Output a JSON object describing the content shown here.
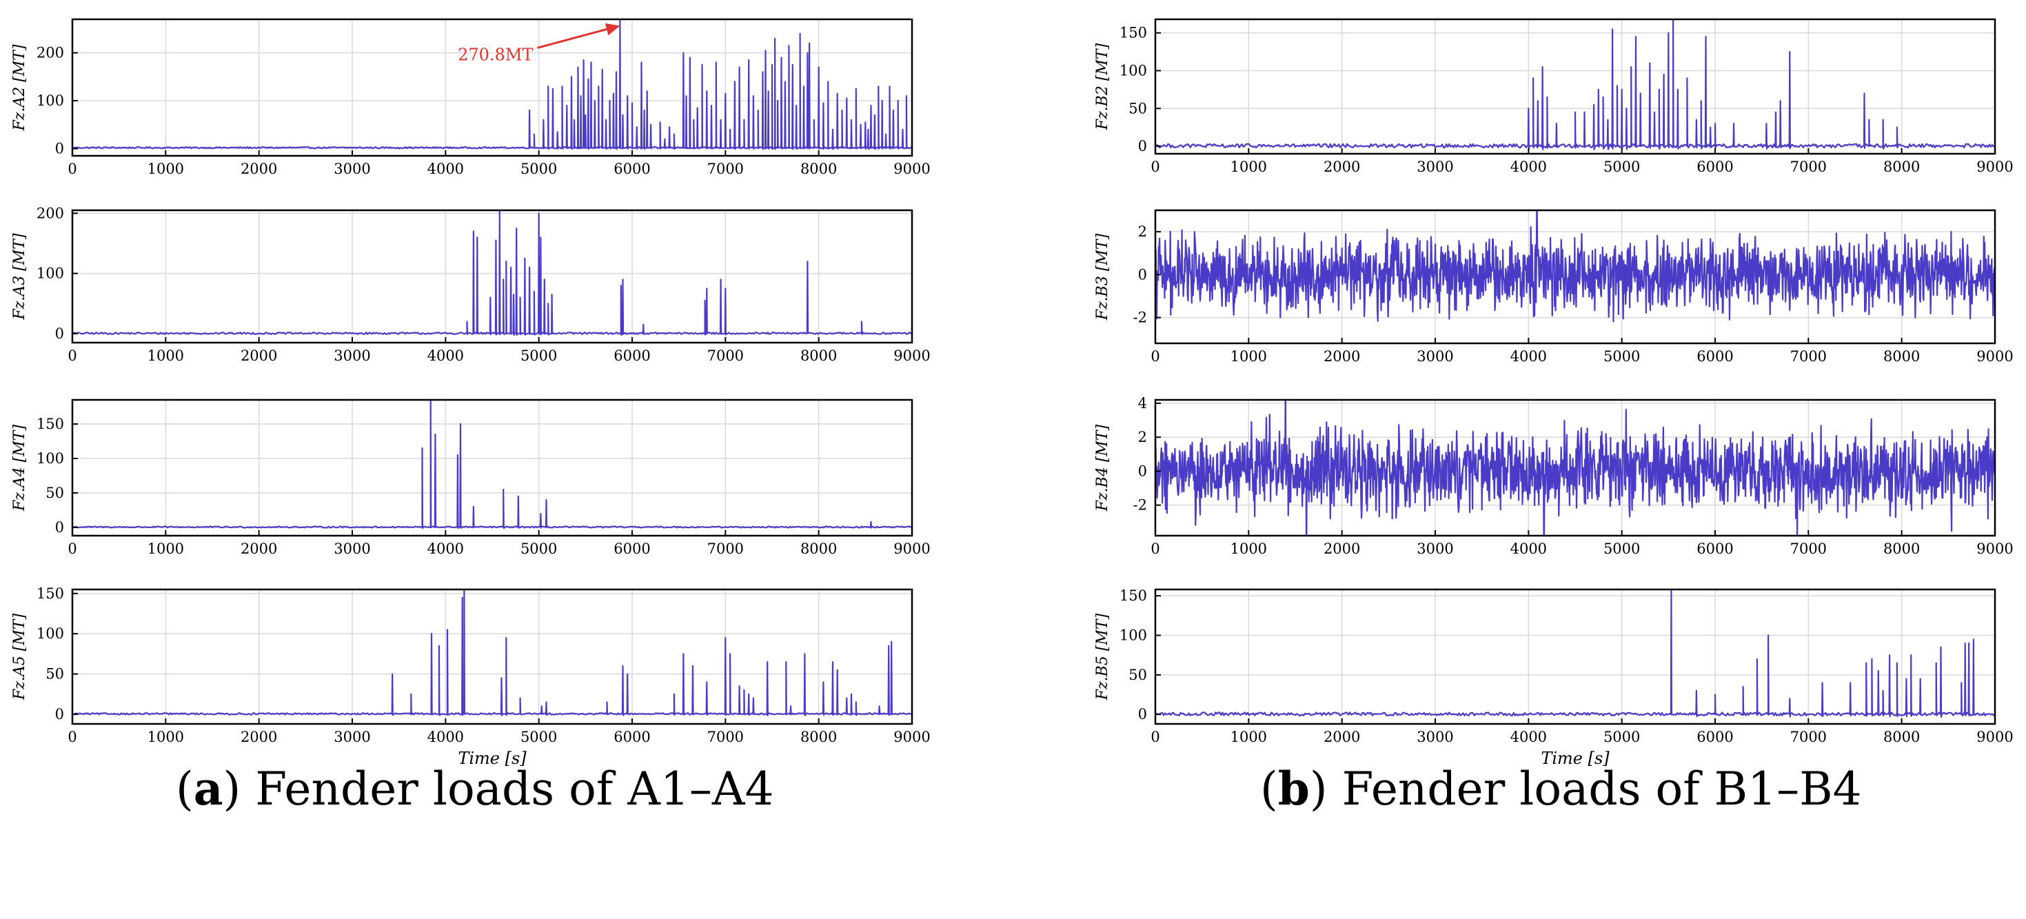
{
  "figure": {
    "caption_a": {
      "letter": "a",
      "text": "Fender loads of A1–A4"
    },
    "caption_b": {
      "letter": "b",
      "text": "Fender loads of B1–B4"
    },
    "line_color": "#4b3cc8",
    "annotation_color": "#e0342e"
  },
  "chart_data": [
    {
      "type": "line",
      "panel": "A2",
      "column": "a",
      "ylabel": "Fz.A2 [MT]",
      "xlabel": "",
      "xlim": [
        0,
        9000
      ],
      "ylim": [
        -15,
        270
      ],
      "xticks": [
        0,
        1000,
        2000,
        3000,
        4000,
        5000,
        6000,
        7000,
        8000,
        9000
      ],
      "yticks": [
        0,
        100,
        200
      ],
      "pattern": "spikes",
      "baseline": 2,
      "noise": 1.5,
      "annotation": {
        "text": "270.8MT",
        "x": 5870,
        "y": 270.8
      },
      "x": [
        3500,
        4900,
        4950,
        5050,
        5100,
        5150,
        5200,
        5250,
        5300,
        5350,
        5380,
        5420,
        5450,
        5480,
        5500,
        5530,
        5560,
        5600,
        5640,
        5680,
        5720,
        5760,
        5800,
        5830,
        5870,
        5900,
        5950,
        6000,
        6050,
        6100,
        6130,
        6160,
        6200,
        6300,
        6350,
        6400,
        6450,
        6550,
        6580,
        6620,
        6660,
        6700,
        6750,
        6800,
        6850,
        6900,
        6950,
        7000,
        7050,
        7100,
        7150,
        7200,
        7250,
        7300,
        7350,
        7400,
        7430,
        7460,
        7500,
        7530,
        7560,
        7600,
        7640,
        7680,
        7720,
        7760,
        7800,
        7840,
        7880,
        7900,
        7950,
        8000,
        8050,
        8100,
        8150,
        8200,
        8250,
        8300,
        8350,
        8400,
        8450,
        8500,
        8530,
        8560,
        8600,
        8640,
        8680,
        8720,
        8760,
        8800,
        8850,
        8900,
        8940
      ],
      "y": [
        0,
        80,
        30,
        60,
        130,
        125,
        35,
        130,
        90,
        150,
        60,
        170,
        110,
        185,
        70,
        145,
        180,
        100,
        130,
        165,
        60,
        100,
        115,
        160,
        270.8,
        70,
        110,
        95,
        45,
        180,
        80,
        120,
        50,
        55,
        20,
        45,
        30,
        200,
        110,
        190,
        60,
        85,
        175,
        120,
        90,
        180,
        60,
        115,
        40,
        140,
        170,
        60,
        185,
        110,
        80,
        160,
        205,
        120,
        175,
        230,
        100,
        190,
        140,
        215,
        175,
        90,
        240,
        130,
        200,
        220,
        60,
        170,
        95,
        140,
        40,
        115,
        80,
        105,
        60,
        125,
        50,
        55,
        40,
        90,
        70,
        130,
        100,
        30,
        130,
        80,
        100,
        40,
        110
      ]
    },
    {
      "type": "line",
      "panel": "A3",
      "column": "a",
      "ylabel": "Fz.A3 [MT]",
      "xlabel": "",
      "xlim": [
        0,
        9000
      ],
      "ylim": [
        -15,
        205
      ],
      "xticks": [
        0,
        1000,
        2000,
        3000,
        4000,
        5000,
        6000,
        7000,
        8000,
        9000
      ],
      "yticks": [
        0,
        100,
        200
      ],
      "pattern": "spikes",
      "baseline": 0.5,
      "noise": 1.5,
      "x": [
        4230,
        4300,
        4340,
        4480,
        4540,
        4580,
        4620,
        4650,
        4700,
        4730,
        4760,
        4800,
        4850,
        4900,
        4950,
        5000,
        5020,
        5060,
        5100,
        5140,
        5880,
        5900,
        6120,
        6780,
        6800,
        6950,
        7000,
        7880,
        8460
      ],
      "y": [
        20,
        170,
        160,
        60,
        155,
        205,
        90,
        120,
        110,
        65,
        175,
        60,
        125,
        110,
        70,
        200,
        160,
        90,
        50,
        65,
        80,
        90,
        15,
        55,
        75,
        90,
        75,
        120,
        20
      ]
    },
    {
      "type": "line",
      "panel": "A4",
      "column": "a",
      "ylabel": "Fz.A4 [MT]",
      "xlabel": "",
      "xlim": [
        0,
        9000
      ],
      "ylim": [
        -12,
        185
      ],
      "xticks": [
        0,
        1000,
        2000,
        3000,
        4000,
        5000,
        6000,
        7000,
        8000,
        9000
      ],
      "yticks": [
        0,
        50,
        100,
        150
      ],
      "pattern": "spikes",
      "baseline": 0.5,
      "noise": 1,
      "x": [
        3750,
        3840,
        3890,
        4130,
        4160,
        4300,
        4620,
        4780,
        5020,
        5080,
        8560
      ],
      "y": [
        115,
        185,
        135,
        105,
        150,
        30,
        55,
        45,
        20,
        40,
        8
      ]
    },
    {
      "type": "line",
      "panel": "A5",
      "column": "a",
      "ylabel": "Fz.A5 [MT]",
      "xlabel": "Time [s]",
      "xlim": [
        0,
        9000
      ],
      "ylim": [
        -12,
        155
      ],
      "xticks": [
        0,
        1000,
        2000,
        3000,
        4000,
        5000,
        6000,
        7000,
        8000,
        9000
      ],
      "yticks": [
        0,
        50,
        100,
        150
      ],
      "pattern": "spikes",
      "baseline": 0.5,
      "noise": 1,
      "x": [
        3430,
        3630,
        3850,
        3930,
        4020,
        4180,
        4200,
        4600,
        4650,
        4800,
        5030,
        5080,
        5730,
        5900,
        5950,
        6450,
        6550,
        6650,
        6800,
        7000,
        7050,
        7150,
        7200,
        7250,
        7300,
        7450,
        7650,
        7700,
        7850,
        8050,
        8150,
        8200,
        8300,
        8350,
        8400,
        8650,
        8750,
        8780
      ],
      "y": [
        50,
        25,
        100,
        85,
        105,
        145,
        155,
        45,
        95,
        20,
        10,
        15,
        15,
        60,
        50,
        25,
        75,
        60,
        40,
        95,
        75,
        35,
        30,
        25,
        20,
        65,
        65,
        10,
        75,
        40,
        65,
        55,
        20,
        25,
        15,
        10,
        85,
        90
      ]
    },
    {
      "type": "line",
      "panel": "B2",
      "column": "b",
      "ylabel": "Fz.B2 [MT]",
      "xlabel": "",
      "xlim": [
        0,
        9000
      ],
      "ylim": [
        -10,
        168
      ],
      "xticks": [
        0,
        1000,
        2000,
        3000,
        4000,
        5000,
        6000,
        7000,
        8000,
        9000
      ],
      "yticks": [
        0,
        50,
        100,
        150
      ],
      "pattern": "spikes",
      "baseline": 0.5,
      "noise": 2.5,
      "x": [
        4000,
        4050,
        4100,
        4150,
        4200,
        4300,
        4500,
        4600,
        4700,
        4750,
        4800,
        4850,
        4900,
        4950,
        5000,
        5050,
        5100,
        5150,
        5200,
        5300,
        5350,
        5400,
        5450,
        5500,
        5550,
        5600,
        5700,
        5800,
        5850,
        5900,
        5950,
        6000,
        6200,
        6550,
        6650,
        6700,
        6800,
        7600,
        7650,
        7800,
        7950
      ],
      "y": [
        50,
        90,
        60,
        105,
        65,
        30,
        45,
        45,
        55,
        75,
        65,
        35,
        155,
        80,
        75,
        50,
        105,
        145,
        70,
        110,
        45,
        75,
        95,
        150,
        170,
        75,
        90,
        35,
        60,
        145,
        25,
        30,
        30,
        30,
        45,
        60,
        125,
        70,
        35,
        35,
        25
      ]
    },
    {
      "type": "line",
      "panel": "B3",
      "column": "b",
      "ylabel": "Fz.B3 [MT]",
      "xlabel": "",
      "xlim": [
        0,
        9000
      ],
      "ylim": [
        -3.2,
        3
      ],
      "xticks": [
        0,
        1000,
        2000,
        3000,
        4000,
        5000,
        6000,
        7000,
        8000,
        9000
      ],
      "yticks": [
        -2,
        0,
        2
      ],
      "pattern": "noise",
      "amplitude": 1.0
    },
    {
      "type": "line",
      "panel": "B4",
      "column": "b",
      "ylabel": "Fz.B4 [MT]",
      "xlabel": "",
      "xlim": [
        0,
        9000
      ],
      "ylim": [
        -3.8,
        4.2
      ],
      "xticks": [
        0,
        1000,
        2000,
        3000,
        4000,
        5000,
        6000,
        7000,
        8000,
        9000
      ],
      "yticks": [
        -2,
        0,
        2,
        4
      ],
      "pattern": "noise",
      "amplitude": 1.4
    },
    {
      "type": "line",
      "panel": "B5",
      "column": "b",
      "ylabel": "Fz.B5 [MT]",
      "xlabel": "Time [s]",
      "xlim": [
        0,
        9000
      ],
      "ylim": [
        -12,
        158
      ],
      "xticks": [
        0,
        1000,
        2000,
        3000,
        4000,
        5000,
        6000,
        7000,
        8000,
        9000
      ],
      "yticks": [
        0,
        50,
        100,
        150
      ],
      "pattern": "spikes",
      "baseline": 0.5,
      "noise": 2,
      "x": [
        5530,
        5800,
        6000,
        6300,
        6450,
        6570,
        6800,
        7150,
        7450,
        7620,
        7680,
        7750,
        7800,
        7870,
        7950,
        8050,
        8100,
        8200,
        8370,
        8420,
        8640,
        8680,
        8720,
        8770
      ],
      "y": [
        158,
        30,
        25,
        35,
        70,
        100,
        20,
        40,
        40,
        65,
        70,
        55,
        30,
        75,
        65,
        45,
        75,
        45,
        65,
        85,
        40,
        90,
        90,
        95
      ]
    }
  ]
}
